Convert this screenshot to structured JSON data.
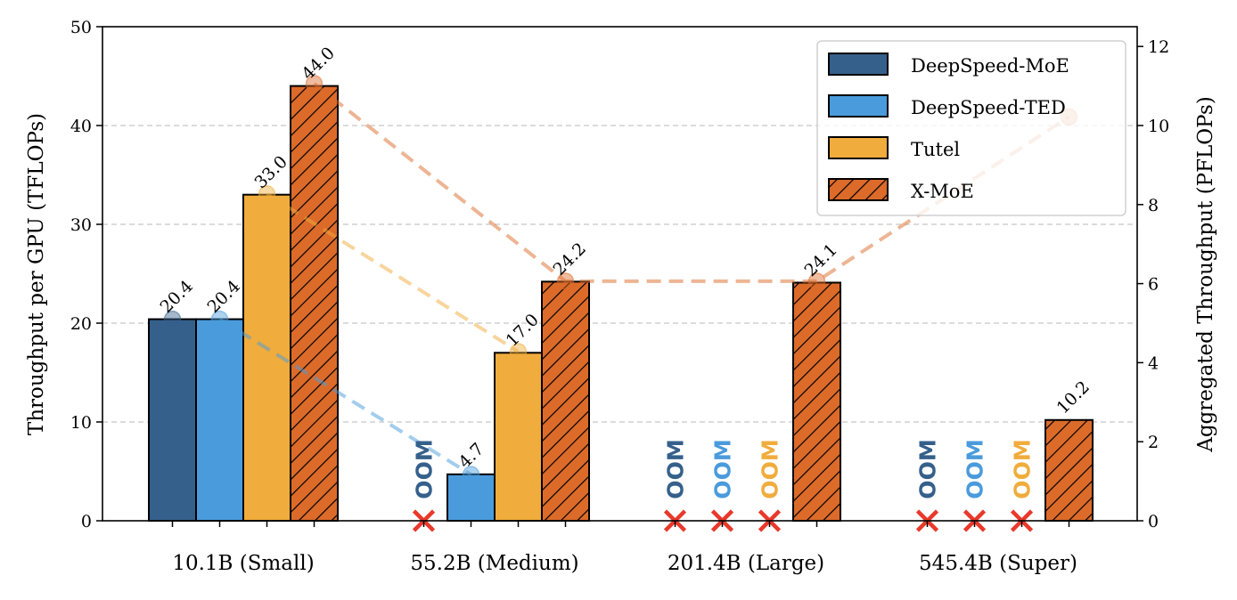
{
  "chart_data": {
    "type": "bar",
    "ylabel": "Throughput per GPU (TFLOPs)",
    "y2label": "Aggregated Throughput (PFLOPs)",
    "ylim": [
      0,
      50
    ],
    "y2lim": [
      0,
      12.5
    ],
    "yticks": [
      0,
      10,
      20,
      30,
      40,
      50
    ],
    "y2ticks": [
      0,
      2,
      4,
      6,
      8,
      10,
      12
    ],
    "grid": true,
    "legend_position": "top-right",
    "categories": [
      "10.1B (Small)",
      "55.2B (Medium)",
      "201.4B (Large)",
      "545.4B (Super)"
    ],
    "oom_label": "OOM",
    "series": [
      {
        "name": "DeepSpeed-MoE",
        "color": "#35608b",
        "hatch": false,
        "values": [
          20.4,
          null,
          null,
          null
        ],
        "labels": [
          "20.4",
          null,
          null,
          null
        ],
        "aggregated": [
          5.1,
          null,
          null,
          null
        ]
      },
      {
        "name": "DeepSpeed-TED",
        "color": "#4a9bdc",
        "hatch": false,
        "values": [
          20.4,
          4.7,
          null,
          null
        ],
        "labels": [
          "20.4",
          "4.7",
          null,
          null
        ],
        "aggregated": [
          5.1,
          1.17,
          null,
          null
        ]
      },
      {
        "name": "Tutel",
        "color": "#f0ac3c",
        "hatch": false,
        "values": [
          33.0,
          17.0,
          null,
          null
        ],
        "labels": [
          "33.0",
          "17.0",
          null,
          null
        ],
        "aggregated": [
          8.27,
          4.28,
          null,
          null
        ]
      },
      {
        "name": "X-MoE",
        "color": "#dc6b2a",
        "hatch": true,
        "values": [
          44.0,
          24.2,
          24.1,
          10.2
        ],
        "labels": [
          "44.0",
          "24.2",
          "24.1",
          "10.2"
        ],
        "aggregated": [
          11.06,
          6.06,
          6.06,
          10.22
        ]
      }
    ]
  }
}
